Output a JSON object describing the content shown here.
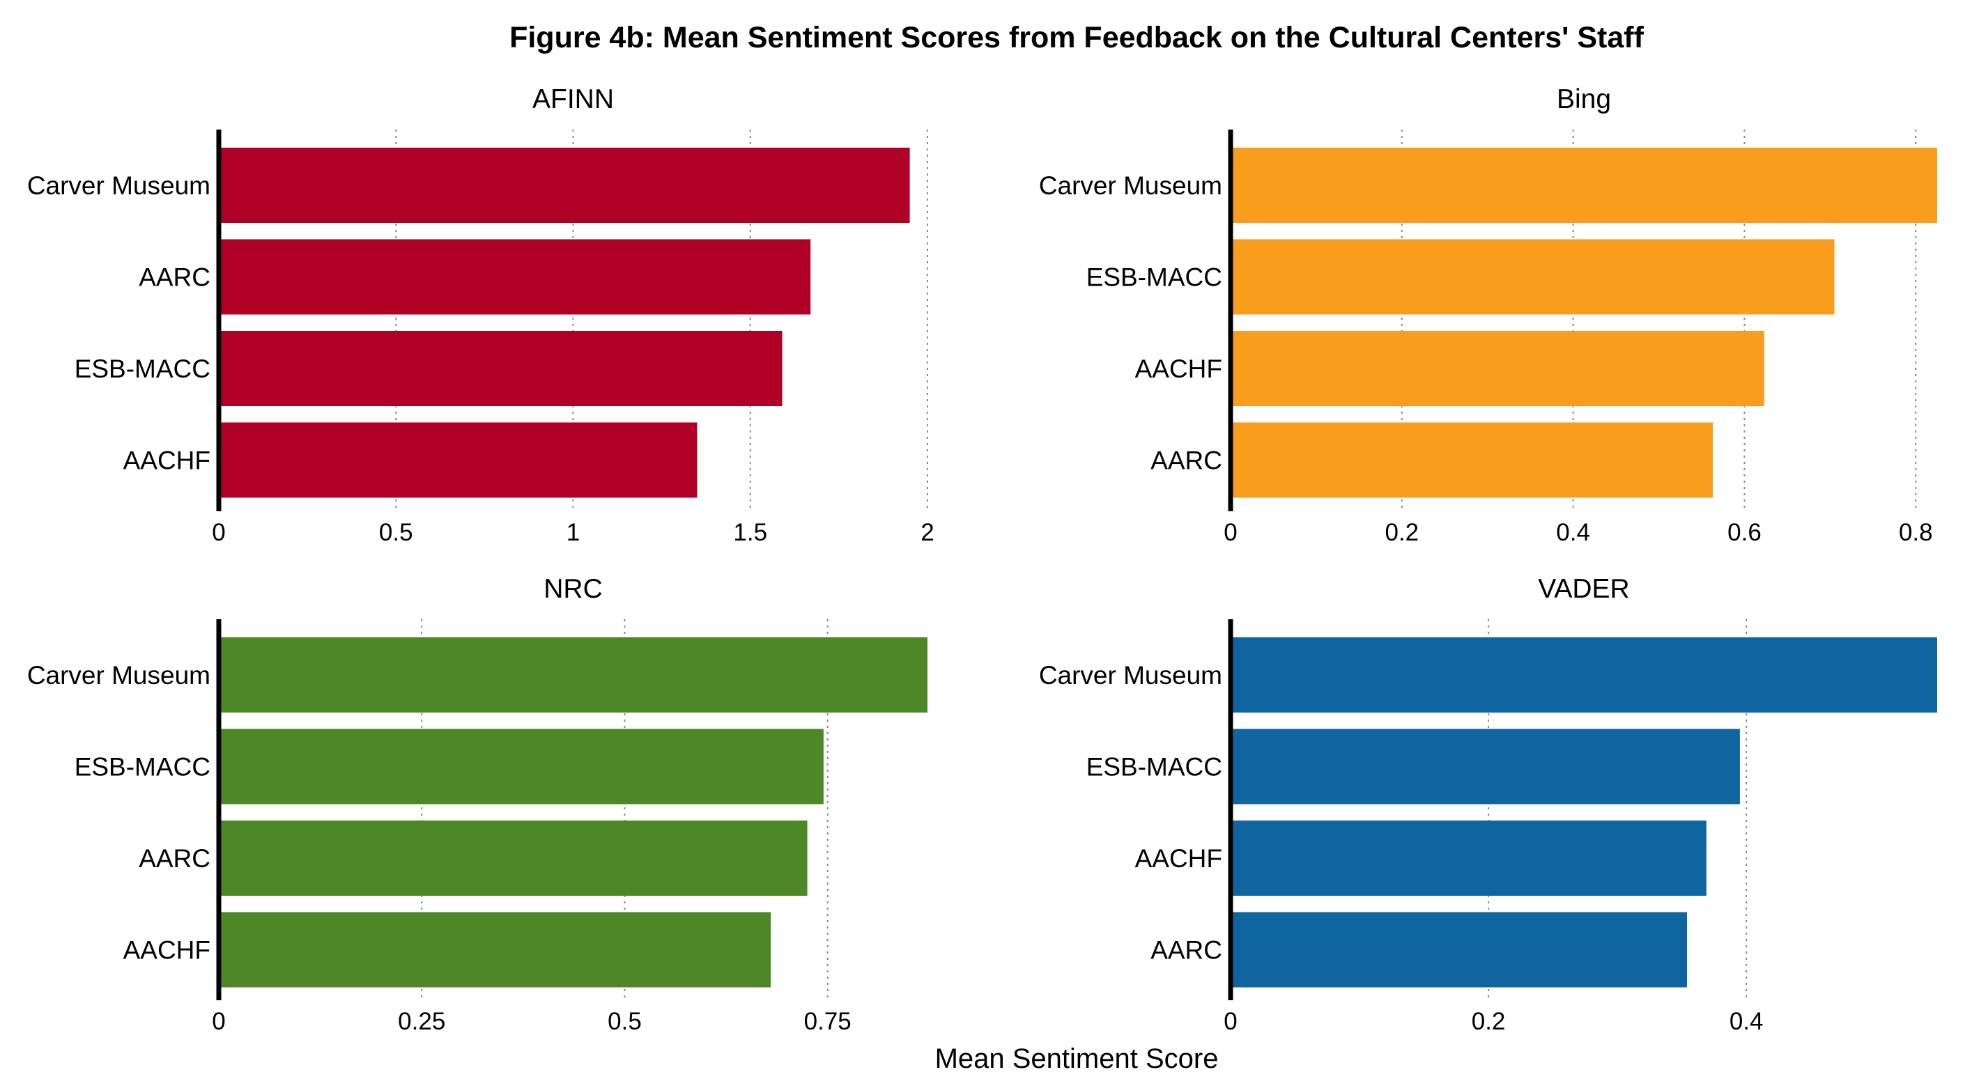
{
  "title": "Figure 4b: Mean Sentiment Scores from Feedback on the Cultural Centers' Staff",
  "xlabel": "Mean Sentiment Score",
  "chart_data": [
    {
      "type": "bar",
      "orientation": "horizontal",
      "title": "AFINN",
      "color": "#B10026",
      "categories": [
        "Carver Museum",
        "AARC",
        "ESB-MACC",
        "AACHF"
      ],
      "values": [
        1.95,
        1.67,
        1.59,
        1.35
      ],
      "xlim": [
        0,
        2.0
      ],
      "ticks": [
        0,
        0.5,
        1,
        1.5,
        2
      ],
      "tick_labels": [
        "0",
        "0.5",
        "1",
        "1.5",
        "2"
      ],
      "grid": "vertical dotted"
    },
    {
      "type": "bar",
      "orientation": "horizontal",
      "title": "Bing",
      "color": "#F99D1C",
      "categories": [
        "Carver Museum",
        "ESB-MACC",
        "AACHF",
        "AARC"
      ],
      "values": [
        0.825,
        0.705,
        0.623,
        0.563
      ],
      "xlim": [
        0,
        0.825
      ],
      "ticks": [
        0,
        0.2,
        0.4,
        0.6,
        0.8
      ],
      "tick_labels": [
        "0",
        "0.2",
        "0.4",
        "0.6",
        "0.8"
      ],
      "grid": "vertical dotted"
    },
    {
      "type": "bar",
      "orientation": "horizontal",
      "title": "NRC",
      "color": "#4D8726",
      "categories": [
        "Carver Museum",
        "ESB-MACC",
        "AARC",
        "AACHF"
      ],
      "values": [
        0.873,
        0.745,
        0.725,
        0.68
      ],
      "xlim": [
        0,
        0.873
      ],
      "ticks": [
        0,
        0.25,
        0.5,
        0.75
      ],
      "tick_labels": [
        "0",
        "0.25",
        "0.5",
        "0.75"
      ],
      "grid": "vertical dotted"
    },
    {
      "type": "bar",
      "orientation": "horizontal",
      "title": "VADER",
      "color": "#0E65A0",
      "categories": [
        "Carver Museum",
        "ESB-MACC",
        "AACHF",
        "AARC"
      ],
      "values": [
        0.548,
        0.395,
        0.369,
        0.354
      ],
      "xlim": [
        0,
        0.548
      ],
      "ticks": [
        0,
        0.2,
        0.4
      ],
      "tick_labels": [
        "0",
        "0.2",
        "0.4"
      ],
      "grid": "vertical dotted"
    }
  ]
}
